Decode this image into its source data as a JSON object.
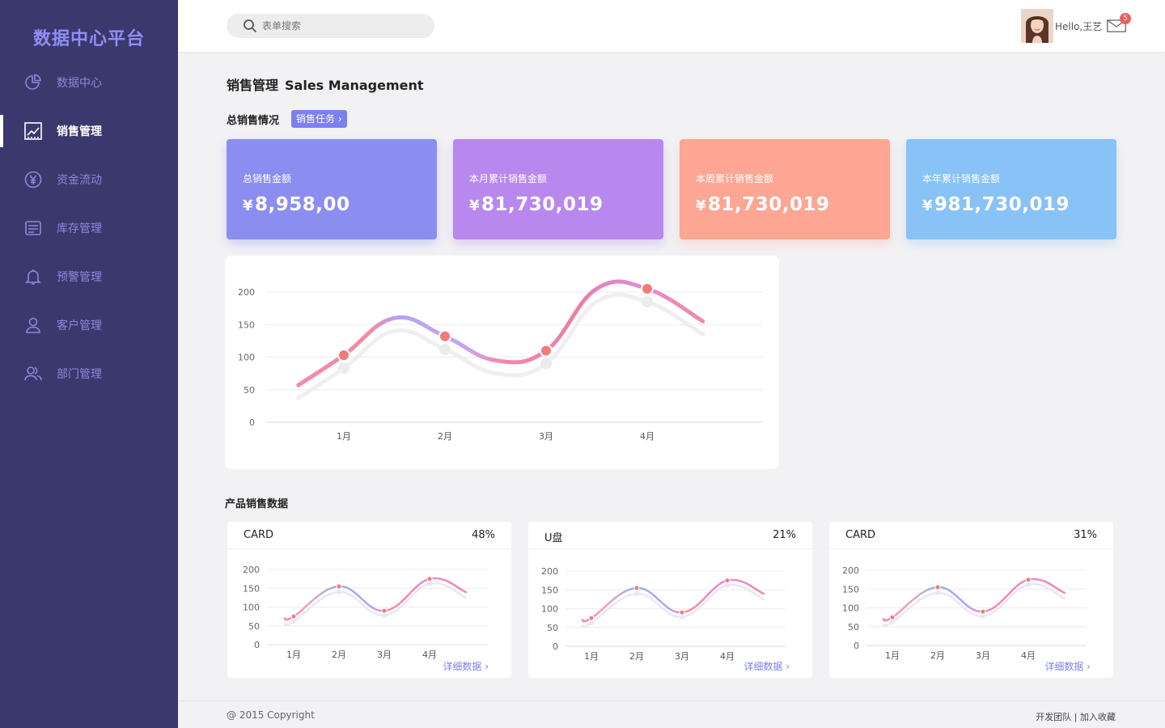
{
  "brand": "数据中心平台",
  "sidebar": {
    "items": [
      {
        "label": "数据中心",
        "icon": "pie-chart-icon"
      },
      {
        "label": "销售管理",
        "icon": "line-chart-icon"
      },
      {
        "label": "资金流动",
        "icon": "yen-circle-icon"
      },
      {
        "label": "库存管理",
        "icon": "inventory-list-icon"
      },
      {
        "label": "预警管理",
        "icon": "bell-icon"
      },
      {
        "label": "客户管理",
        "icon": "user-icon"
      },
      {
        "label": "部门管理",
        "icon": "users-group-icon"
      }
    ]
  },
  "header": {
    "search_placeholder": "表单搜索",
    "greeting": "Hello,王艺",
    "mail_count": "5"
  },
  "page": {
    "title_cn": "销售管理",
    "title_en": "Sales Management"
  },
  "overview": {
    "title": "总销售情况",
    "task_button": "销售任务",
    "stats": [
      {
        "title": "总销售金额",
        "currency": "¥",
        "value": "8,958,00"
      },
      {
        "title": "本月累计销售金额",
        "currency": "¥",
        "value": "81,730,019"
      },
      {
        "title": "本周累计销售金额",
        "currency": "¥",
        "value": "81,730,019"
      },
      {
        "title": "本年累计销售金额",
        "currency": "¥",
        "value": "981,730,019"
      }
    ]
  },
  "products": {
    "title": "产品销售数据",
    "cards": [
      {
        "name": "CARD",
        "percent": "48%",
        "more": "详细数据"
      },
      {
        "name": "U盘",
        "percent": "21%",
        "more": "详细数据"
      },
      {
        "name": "CARD",
        "percent": "31%",
        "more": "详细数据"
      }
    ]
  },
  "footer": {
    "copyright": "@ 2015 Copyright",
    "team": "开发团队",
    "separator": " | ",
    "bookmark": "加入收藏"
  },
  "colors": {
    "sidebar": "#3b386e",
    "accent": "#7b80f0",
    "line_start": "#f48aa5",
    "line_mid": "#b8a1f5",
    "line_pink": "#e28ad6",
    "dot": "#f27a7a"
  },
  "chart_data": [
    {
      "type": "line",
      "title": "",
      "categories": [
        "1月",
        "2月",
        "3月",
        "4月"
      ],
      "yticks": [
        0,
        50,
        100,
        150,
        200
      ],
      "ylim": [
        0,
        200
      ],
      "series": [
        {
          "name": "sales",
          "x": [
            0.55,
            1,
            1.5,
            2,
            2.5,
            3,
            3.5,
            4,
            4.55
          ],
          "values": [
            57,
            103,
            160,
            132,
            95,
            110,
            205,
            205,
            155
          ],
          "points": [
            103,
            132,
            110,
            205
          ]
        },
        {
          "name": "shadow",
          "x": [
            0.55,
            1,
            1.5,
            2,
            2.5,
            3,
            3.5,
            4,
            4.55
          ],
          "values": [
            37,
            83,
            140,
            112,
            75,
            90,
            185,
            185,
            135
          ],
          "points": [
            83,
            112,
            90,
            185
          ]
        }
      ]
    },
    {
      "type": "line",
      "categories": [
        "1月",
        "2月",
        "3月",
        "4月"
      ],
      "yticks": [
        0,
        50,
        100,
        150,
        200
      ],
      "ylim": [
        0,
        200
      ],
      "series": [
        {
          "name": "sales",
          "x": [
            0.8,
            1,
            2,
            3,
            4,
            4.8
          ],
          "values": [
            70,
            75,
            155,
            90,
            175,
            140
          ],
          "points": [
            75,
            155,
            90,
            175
          ]
        },
        {
          "name": "shadow",
          "x": [
            0.8,
            1,
            2,
            3,
            4,
            4.8
          ],
          "values": [
            55,
            62,
            140,
            78,
            162,
            125
          ],
          "points": [
            62,
            140,
            78,
            162
          ]
        }
      ]
    },
    {
      "type": "line",
      "categories": [
        "1月",
        "2月",
        "3月",
        "4月"
      ],
      "yticks": [
        0,
        50,
        100,
        150,
        200
      ],
      "ylim": [
        0,
        200
      ],
      "series": [
        {
          "name": "sales",
          "x": [
            0.8,
            1,
            2,
            3,
            4,
            4.8
          ],
          "values": [
            70,
            75,
            155,
            90,
            175,
            140
          ],
          "points": [
            75,
            155,
            90,
            175
          ]
        },
        {
          "name": "shadow",
          "x": [
            0.8,
            1,
            2,
            3,
            4,
            4.8
          ],
          "values": [
            55,
            62,
            140,
            78,
            162,
            125
          ],
          "points": [
            62,
            140,
            78,
            162
          ]
        }
      ]
    },
    {
      "type": "line",
      "categories": [
        "1月",
        "2月",
        "3月",
        "4月"
      ],
      "yticks": [
        0,
        50,
        100,
        150,
        200
      ],
      "ylim": [
        0,
        200
      ],
      "series": [
        {
          "name": "sales",
          "x": [
            0.8,
            1,
            2,
            3,
            4,
            4.8
          ],
          "values": [
            70,
            75,
            155,
            90,
            175,
            140
          ],
          "points": [
            75,
            155,
            90,
            175
          ]
        },
        {
          "name": "shadow",
          "x": [
            0.8,
            1,
            2,
            3,
            4,
            4.8
          ],
          "values": [
            55,
            62,
            140,
            78,
            162,
            125
          ],
          "points": [
            62,
            140,
            78,
            162
          ]
        }
      ]
    }
  ]
}
